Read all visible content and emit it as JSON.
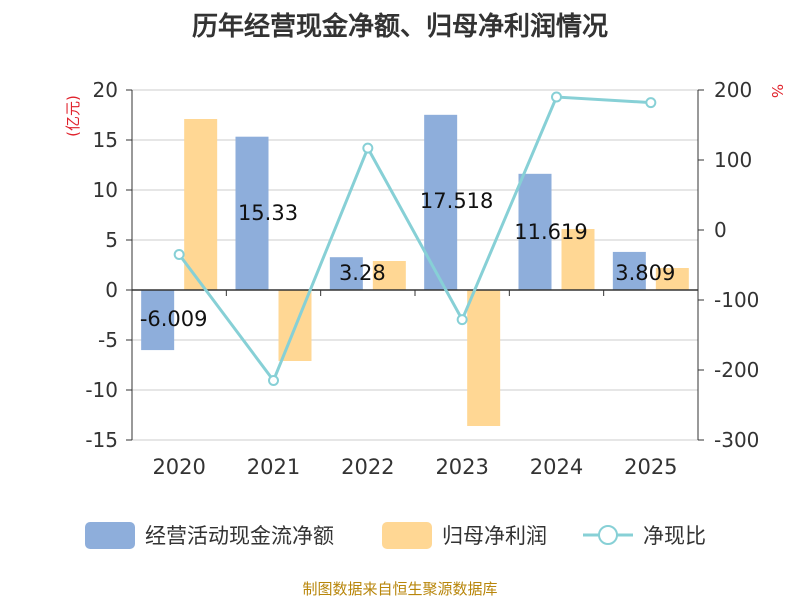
{
  "page": {
    "title": "历年经营现金净额、归母净利润情况",
    "source": "制图数据来自恒生聚源数据库"
  },
  "colors": {
    "cash": "#8eaedb",
    "profit": "#ffd794",
    "ratio": "#87d0d6",
    "unit": "#e0212b",
    "grid": "#cccccc",
    "axis": "#333333",
    "text": "#333333"
  },
  "chart_data": {
    "type": "bar",
    "title": "历年经营现金净额、归母净利润情况",
    "categories": [
      "2020",
      "2021",
      "2022",
      "2023",
      "2024",
      "2025"
    ],
    "series": [
      {
        "name": "经营活动现金流净额",
        "kind": "bar",
        "axis": "left",
        "values": [
          -6.009,
          15.33,
          3.28,
          17.518,
          11.619,
          3.809
        ],
        "labels": [
          "-6.009",
          "15.33",
          "3.28",
          "17.518",
          "11.619",
          "3.809"
        ]
      },
      {
        "name": "归母净利润",
        "kind": "bar",
        "axis": "left",
        "values": [
          17.1,
          -7.1,
          2.9,
          -13.6,
          6.1,
          2.2
        ]
      },
      {
        "name": "净现比",
        "kind": "line",
        "axis": "right",
        "values": [
          -35,
          -215,
          117,
          -128,
          190,
          182
        ]
      }
    ],
    "y_left": {
      "label": "(亿元)",
      "range": [
        -15,
        20
      ],
      "ticks": [
        20,
        15,
        10,
        5,
        0,
        -5,
        -10,
        -15
      ]
    },
    "y_right": {
      "label": "%",
      "range": [
        -300,
        200
      ],
      "ticks": [
        200,
        100,
        0,
        -100,
        -200,
        -300
      ]
    },
    "legend_position": "bottom"
  }
}
